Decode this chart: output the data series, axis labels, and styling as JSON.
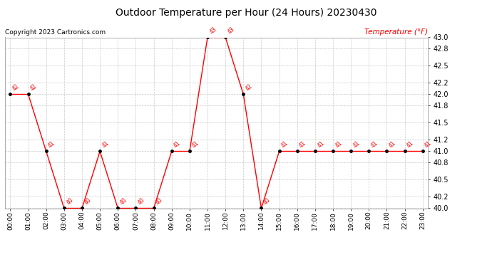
{
  "title": "Outdoor Temperature per Hour (24 Hours) 20230430",
  "copyright": "Copyright 2023 Cartronics.com",
  "legend_label": "Temperature (°F)",
  "hours": [
    "00:00",
    "01:00",
    "02:00",
    "03:00",
    "04:00",
    "05:00",
    "06:00",
    "07:00",
    "08:00",
    "09:00",
    "10:00",
    "11:00",
    "12:00",
    "13:00",
    "14:00",
    "15:00",
    "16:00",
    "17:00",
    "18:00",
    "19:00",
    "20:00",
    "21:00",
    "22:00",
    "23:00"
  ],
  "temperatures": [
    42,
    42,
    41,
    40,
    40,
    41,
    40,
    40,
    40,
    41,
    41,
    43,
    43,
    42,
    40,
    41,
    41,
    41,
    41,
    41,
    41,
    41,
    41,
    41
  ],
  "ylim_min": 40.0,
  "ylim_max": 43.0,
  "yticks": [
    40.0,
    40.2,
    40.5,
    40.8,
    41.0,
    41.2,
    41.5,
    41.8,
    42.0,
    42.2,
    42.5,
    42.8,
    43.0
  ],
  "line_color": "red",
  "marker_color": "black",
  "background_color": "#ffffff",
  "grid_color": "#bbbbbb",
  "title_color": "black",
  "copyright_color": "black",
  "legend_color": "red"
}
